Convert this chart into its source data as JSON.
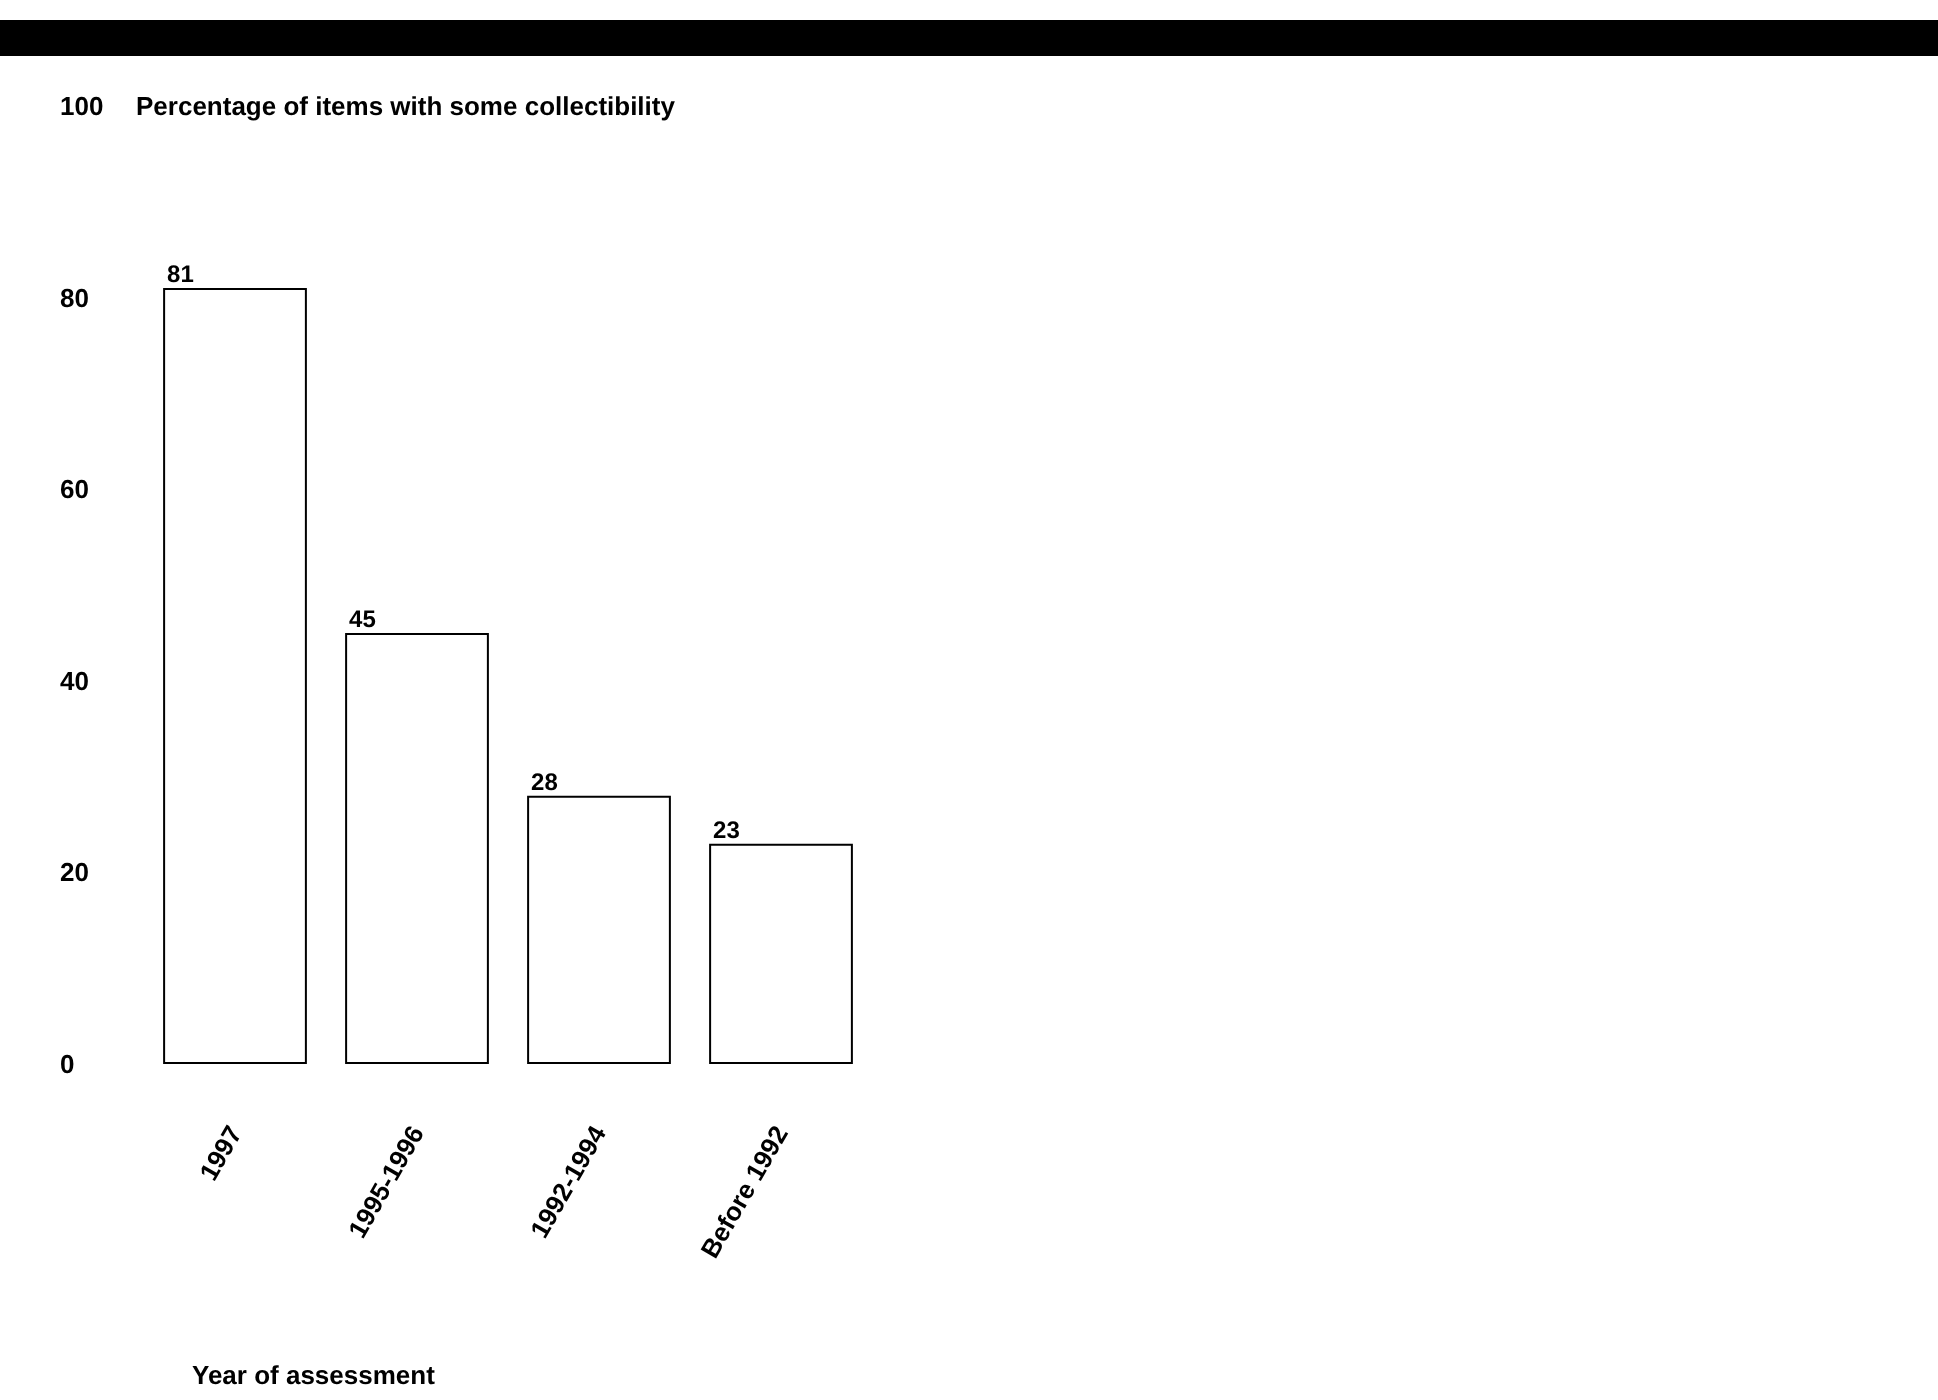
{
  "chart_data": {
    "type": "bar",
    "ylabel": "Percentage of items with some collectibility",
    "xlabel": "Year of assessment",
    "categories": [
      "1997",
      "1995-1996",
      "1992-1994",
      "Before 1992"
    ],
    "values": [
      81,
      45,
      28,
      23
    ],
    "color": "#ffffff",
    "ylim": [
      0,
      100
    ],
    "yticks": [
      0,
      20,
      40,
      60,
      80,
      100
    ],
    "grid": false,
    "data_labels": true
  }
}
